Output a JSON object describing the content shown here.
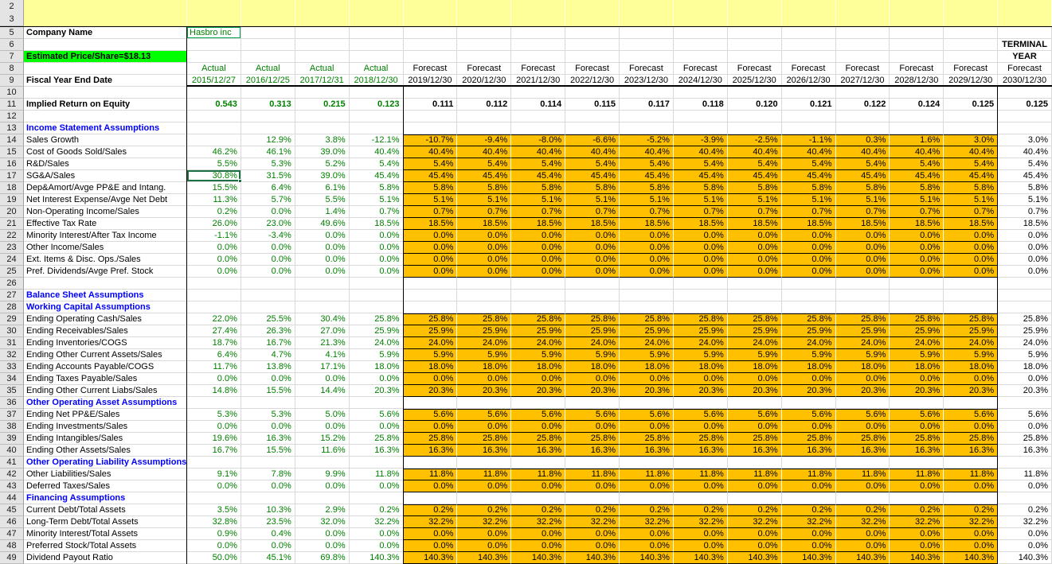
{
  "colors": {
    "band_yellow": "#FFFF99",
    "price_banner_green": "#00FF00",
    "forecast_orange": "#FFC000",
    "actual_text_green": "#008000",
    "section_blue": "#0000FF",
    "selection_green": "#1E7145"
  },
  "sheet": {
    "top_rows": [
      "2",
      "3"
    ],
    "fixed_row_numbers": {
      "company": "5",
      "blank1": "6",
      "price": "7",
      "coltype": "8",
      "dates": "9",
      "blank2": "10",
      "roe": "11"
    },
    "company": {
      "label": "Company Name",
      "value": "Hasbro inc"
    },
    "price_banner": "Estimated Price/Share=$18.13",
    "terminal_header": [
      "TERMINAL",
      "YEAR"
    ],
    "col_headers": {
      "dates_label": "Fiscal Year End Date",
      "types": [
        "Actual",
        "Actual",
        "Actual",
        "Actual",
        "Forecast",
        "Forecast",
        "Forecast",
        "Forecast",
        "Forecast",
        "Forecast",
        "Forecast",
        "Forecast",
        "Forecast",
        "Forecast",
        "Forecast",
        "Forecast"
      ],
      "dates": [
        "2015/12/27",
        "2016/12/25",
        "2017/12/31",
        "2018/12/30",
        "2019/12/30",
        "2020/12/30",
        "2021/12/30",
        "2022/12/30",
        "2023/12/30",
        "2024/12/30",
        "2025/12/30",
        "2026/12/30",
        "2027/12/30",
        "2028/12/30",
        "2029/12/30",
        "2030/12/30"
      ]
    },
    "roe": {
      "label": "Implied Return on Equity",
      "values": [
        "0.543",
        "0.313",
        "0.215",
        "0.123",
        "0.111",
        "0.112",
        "0.114",
        "0.115",
        "0.117",
        "0.118",
        "0.120",
        "0.121",
        "0.122",
        "0.124",
        "0.125",
        "0.125"
      ]
    },
    "selection": {
      "row": 17,
      "column": "first_actual",
      "value": "30.8%"
    },
    "body_rows": [
      {
        "n": 12,
        "type": "blank"
      },
      {
        "n": 13,
        "type": "section",
        "label": "Income Statement Assumptions"
      },
      {
        "n": 14,
        "type": "data",
        "label": "Sales Growth",
        "actual": [
          "",
          "12.9%",
          "3.8%",
          "-12.1%"
        ],
        "forecast": [
          "-10.7%",
          "-9.4%",
          "-8.0%",
          "-6.6%",
          "-5.2%",
          "-3.9%",
          "-2.5%",
          "-1.1%",
          "0.3%",
          "1.6%",
          "3.0%"
        ],
        "terminal": "3.0%"
      },
      {
        "n": 15,
        "type": "data",
        "label": "Cost of Goods Sold/Sales",
        "actual": [
          "46.2%",
          "46.1%",
          "39.0%",
          "40.4%"
        ],
        "forecast": [
          "40.4%",
          "40.4%",
          "40.4%",
          "40.4%",
          "40.4%",
          "40.4%",
          "40.4%",
          "40.4%",
          "40.4%",
          "40.4%",
          "40.4%"
        ],
        "terminal": "40.4%"
      },
      {
        "n": 16,
        "type": "data",
        "label": "R&D/Sales",
        "actual": [
          "5.5%",
          "5.3%",
          "5.2%",
          "5.4%"
        ],
        "forecast": [
          "5.4%",
          "5.4%",
          "5.4%",
          "5.4%",
          "5.4%",
          "5.4%",
          "5.4%",
          "5.4%",
          "5.4%",
          "5.4%",
          "5.4%"
        ],
        "terminal": "5.4%"
      },
      {
        "n": 17,
        "type": "data",
        "label": "SG&A/Sales",
        "actual": [
          "30.8%",
          "31.5%",
          "39.0%",
          "45.4%"
        ],
        "forecast": [
          "45.4%",
          "45.4%",
          "45.4%",
          "45.4%",
          "45.4%",
          "45.4%",
          "45.4%",
          "45.4%",
          "45.4%",
          "45.4%",
          "45.4%"
        ],
        "terminal": "45.4%"
      },
      {
        "n": 18,
        "type": "data",
        "label": "Dep&Amort/Avge PP&E and Intang.",
        "actual": [
          "15.5%",
          "6.4%",
          "6.1%",
          "5.8%"
        ],
        "forecast": [
          "5.8%",
          "5.8%",
          "5.8%",
          "5.8%",
          "5.8%",
          "5.8%",
          "5.8%",
          "5.8%",
          "5.8%",
          "5.8%",
          "5.8%"
        ],
        "terminal": "5.8%"
      },
      {
        "n": 19,
        "type": "data",
        "label": "Net Interest Expense/Avge Net Debt",
        "actual": [
          "11.3%",
          "5.7%",
          "5.5%",
          "5.1%"
        ],
        "forecast": [
          "5.1%",
          "5.1%",
          "5.1%",
          "5.1%",
          "5.1%",
          "5.1%",
          "5.1%",
          "5.1%",
          "5.1%",
          "5.1%",
          "5.1%"
        ],
        "terminal": "5.1%"
      },
      {
        "n": 20,
        "type": "data",
        "label": "Non-Operating Income/Sales",
        "actual": [
          "0.2%",
          "0.0%",
          "1.4%",
          "0.7%"
        ],
        "forecast": [
          "0.7%",
          "0.7%",
          "0.7%",
          "0.7%",
          "0.7%",
          "0.7%",
          "0.7%",
          "0.7%",
          "0.7%",
          "0.7%",
          "0.7%"
        ],
        "terminal": "0.7%"
      },
      {
        "n": 21,
        "type": "data",
        "label": "Effective Tax Rate",
        "actual": [
          "26.0%",
          "23.0%",
          "49.6%",
          "18.5%"
        ],
        "forecast": [
          "18.5%",
          "18.5%",
          "18.5%",
          "18.5%",
          "18.5%",
          "18.5%",
          "18.5%",
          "18.5%",
          "18.5%",
          "18.5%",
          "18.5%"
        ],
        "terminal": "18.5%"
      },
      {
        "n": 22,
        "type": "data",
        "label": "Minority Interest/After Tax Income",
        "actual": [
          "-1.1%",
          "-3.4%",
          "0.0%",
          "0.0%"
        ],
        "forecast": [
          "0.0%",
          "0.0%",
          "0.0%",
          "0.0%",
          "0.0%",
          "0.0%",
          "0.0%",
          "0.0%",
          "0.0%",
          "0.0%",
          "0.0%"
        ],
        "terminal": "0.0%"
      },
      {
        "n": 23,
        "type": "data",
        "label": "Other Income/Sales",
        "actual": [
          "0.0%",
          "0.0%",
          "0.0%",
          "0.0%"
        ],
        "forecast": [
          "0.0%",
          "0.0%",
          "0.0%",
          "0.0%",
          "0.0%",
          "0.0%",
          "0.0%",
          "0.0%",
          "0.0%",
          "0.0%",
          "0.0%"
        ],
        "terminal": "0.0%"
      },
      {
        "n": 24,
        "type": "data",
        "label": "Ext. Items & Disc. Ops./Sales",
        "actual": [
          "0.0%",
          "0.0%",
          "0.0%",
          "0.0%"
        ],
        "forecast": [
          "0.0%",
          "0.0%",
          "0.0%",
          "0.0%",
          "0.0%",
          "0.0%",
          "0.0%",
          "0.0%",
          "0.0%",
          "0.0%",
          "0.0%"
        ],
        "terminal": "0.0%"
      },
      {
        "n": 25,
        "type": "data",
        "label": "Pref. Dividends/Avge Pref. Stock",
        "actual": [
          "0.0%",
          "0.0%",
          "0.0%",
          "0.0%"
        ],
        "forecast": [
          "0.0%",
          "0.0%",
          "0.0%",
          "0.0%",
          "0.0%",
          "0.0%",
          "0.0%",
          "0.0%",
          "0.0%",
          "0.0%",
          "0.0%"
        ],
        "terminal": "0.0%"
      },
      {
        "n": 26,
        "type": "blank"
      },
      {
        "n": 27,
        "type": "section",
        "label": "Balance Sheet Assumptions"
      },
      {
        "n": 28,
        "type": "section",
        "label": "Working Capital Assumptions"
      },
      {
        "n": 29,
        "type": "data",
        "label": "Ending Operating Cash/Sales",
        "actual": [
          "22.0%",
          "25.5%",
          "30.4%",
          "25.8%"
        ],
        "forecast": [
          "25.8%",
          "25.8%",
          "25.8%",
          "25.8%",
          "25.8%",
          "25.8%",
          "25.8%",
          "25.8%",
          "25.8%",
          "25.8%",
          "25.8%"
        ],
        "terminal": "25.8%"
      },
      {
        "n": 30,
        "type": "data",
        "label": "Ending Receivables/Sales",
        "actual": [
          "27.4%",
          "26.3%",
          "27.0%",
          "25.9%"
        ],
        "forecast": [
          "25.9%",
          "25.9%",
          "25.9%",
          "25.9%",
          "25.9%",
          "25.9%",
          "25.9%",
          "25.9%",
          "25.9%",
          "25.9%",
          "25.9%"
        ],
        "terminal": "25.9%"
      },
      {
        "n": 31,
        "type": "data",
        "label": "Ending Inventories/COGS",
        "actual": [
          "18.7%",
          "16.7%",
          "21.3%",
          "24.0%"
        ],
        "forecast": [
          "24.0%",
          "24.0%",
          "24.0%",
          "24.0%",
          "24.0%",
          "24.0%",
          "24.0%",
          "24.0%",
          "24.0%",
          "24.0%",
          "24.0%"
        ],
        "terminal": "24.0%"
      },
      {
        "n": 32,
        "type": "data",
        "label": "Ending Other Current Assets/Sales",
        "actual": [
          "6.4%",
          "4.7%",
          "4.1%",
          "5.9%"
        ],
        "forecast": [
          "5.9%",
          "5.9%",
          "5.9%",
          "5.9%",
          "5.9%",
          "5.9%",
          "5.9%",
          "5.9%",
          "5.9%",
          "5.9%",
          "5.9%"
        ],
        "terminal": "5.9%"
      },
      {
        "n": 33,
        "type": "data",
        "label": "Ending Accounts Payable/COGS",
        "actual": [
          "11.7%",
          "13.8%",
          "17.1%",
          "18.0%"
        ],
        "forecast": [
          "18.0%",
          "18.0%",
          "18.0%",
          "18.0%",
          "18.0%",
          "18.0%",
          "18.0%",
          "18.0%",
          "18.0%",
          "18.0%",
          "18.0%"
        ],
        "terminal": "18.0%"
      },
      {
        "n": 34,
        "type": "data",
        "label": "Ending Taxes Payable/Sales",
        "actual": [
          "0.0%",
          "0.0%",
          "0.0%",
          "0.0%"
        ],
        "forecast": [
          "0.0%",
          "0.0%",
          "0.0%",
          "0.0%",
          "0.0%",
          "0.0%",
          "0.0%",
          "0.0%",
          "0.0%",
          "0.0%",
          "0.0%"
        ],
        "terminal": "0.0%"
      },
      {
        "n": 35,
        "type": "data",
        "label": "Ending Other Current Liabs/Sales",
        "actual": [
          "14.8%",
          "15.5%",
          "14.4%",
          "20.3%"
        ],
        "forecast": [
          "20.3%",
          "20.3%",
          "20.3%",
          "20.3%",
          "20.3%",
          "20.3%",
          "20.3%",
          "20.3%",
          "20.3%",
          "20.3%",
          "20.3%"
        ],
        "terminal": "20.3%"
      },
      {
        "n": 36,
        "type": "section",
        "label": "Other Operating Asset Assumptions"
      },
      {
        "n": 37,
        "type": "data",
        "label": "Ending Net PP&E/Sales",
        "actual": [
          "5.3%",
          "5.3%",
          "5.0%",
          "5.6%"
        ],
        "forecast": [
          "5.6%",
          "5.6%",
          "5.6%",
          "5.6%",
          "5.6%",
          "5.6%",
          "5.6%",
          "5.6%",
          "5.6%",
          "5.6%",
          "5.6%"
        ],
        "terminal": "5.6%"
      },
      {
        "n": 38,
        "type": "data",
        "label": "Ending Investments/Sales",
        "actual": [
          "0.0%",
          "0.0%",
          "0.0%",
          "0.0%"
        ],
        "forecast": [
          "0.0%",
          "0.0%",
          "0.0%",
          "0.0%",
          "0.0%",
          "0.0%",
          "0.0%",
          "0.0%",
          "0.0%",
          "0.0%",
          "0.0%"
        ],
        "terminal": "0.0%"
      },
      {
        "n": 39,
        "type": "data",
        "label": "Ending Intangibles/Sales",
        "actual": [
          "19.6%",
          "16.3%",
          "15.2%",
          "25.8%"
        ],
        "forecast": [
          "25.8%",
          "25.8%",
          "25.8%",
          "25.8%",
          "25.8%",
          "25.8%",
          "25.8%",
          "25.8%",
          "25.8%",
          "25.8%",
          "25.8%"
        ],
        "terminal": "25.8%"
      },
      {
        "n": 40,
        "type": "data",
        "label": "Ending Other Assets/Sales",
        "actual": [
          "16.7%",
          "15.5%",
          "11.6%",
          "16.3%"
        ],
        "forecast": [
          "16.3%",
          "16.3%",
          "16.3%",
          "16.3%",
          "16.3%",
          "16.3%",
          "16.3%",
          "16.3%",
          "16.3%",
          "16.3%",
          "16.3%"
        ],
        "terminal": "16.3%"
      },
      {
        "n": 41,
        "type": "section",
        "label": "Other Operating Liability Assumptions"
      },
      {
        "n": 42,
        "type": "data",
        "label": "Other Liabilities/Sales",
        "actual": [
          "9.1%",
          "7.8%",
          "9.9%",
          "11.8%"
        ],
        "forecast": [
          "11.8%",
          "11.8%",
          "11.8%",
          "11.8%",
          "11.8%",
          "11.8%",
          "11.8%",
          "11.8%",
          "11.8%",
          "11.8%",
          "11.8%"
        ],
        "terminal": "11.8%"
      },
      {
        "n": 43,
        "type": "data",
        "label": "Deferred Taxes/Sales",
        "actual": [
          "0.0%",
          "0.0%",
          "0.0%",
          "0.0%"
        ],
        "forecast": [
          "0.0%",
          "0.0%",
          "0.0%",
          "0.0%",
          "0.0%",
          "0.0%",
          "0.0%",
          "0.0%",
          "0.0%",
          "0.0%",
          "0.0%"
        ],
        "terminal": "0.0%"
      },
      {
        "n": 44,
        "type": "section",
        "label": "Financing Assumptions"
      },
      {
        "n": 45,
        "type": "data",
        "label": "Current Debt/Total Assets",
        "actual": [
          "3.5%",
          "10.3%",
          "2.9%",
          "0.2%"
        ],
        "forecast": [
          "0.2%",
          "0.2%",
          "0.2%",
          "0.2%",
          "0.2%",
          "0.2%",
          "0.2%",
          "0.2%",
          "0.2%",
          "0.2%",
          "0.2%"
        ],
        "terminal": "0.2%"
      },
      {
        "n": 46,
        "type": "data",
        "label": "Long-Term Debt/Total Assets",
        "actual": [
          "32.8%",
          "23.5%",
          "32.0%",
          "32.2%"
        ],
        "forecast": [
          "32.2%",
          "32.2%",
          "32.2%",
          "32.2%",
          "32.2%",
          "32.2%",
          "32.2%",
          "32.2%",
          "32.2%",
          "32.2%",
          "32.2%"
        ],
        "terminal": "32.2%"
      },
      {
        "n": 47,
        "type": "data",
        "label": "Minority Interest/Total Assets",
        "actual": [
          "0.9%",
          "0.4%",
          "0.0%",
          "0.0%"
        ],
        "forecast": [
          "0.0%",
          "0.0%",
          "0.0%",
          "0.0%",
          "0.0%",
          "0.0%",
          "0.0%",
          "0.0%",
          "0.0%",
          "0.0%",
          "0.0%"
        ],
        "terminal": "0.0%"
      },
      {
        "n": 48,
        "type": "data",
        "label": "Preferred Stock/Total Assets",
        "actual": [
          "0.0%",
          "0.0%",
          "0.0%",
          "0.0%"
        ],
        "forecast": [
          "0.0%",
          "0.0%",
          "0.0%",
          "0.0%",
          "0.0%",
          "0.0%",
          "0.0%",
          "0.0%",
          "0.0%",
          "0.0%",
          "0.0%"
        ],
        "terminal": "0.0%"
      },
      {
        "n": 49,
        "type": "data",
        "label": "Dividend Payout Ratio",
        "actual": [
          "50.0%",
          "45.1%",
          "69.8%",
          "140.3%"
        ],
        "forecast": [
          "140.3%",
          "140.3%",
          "140.3%",
          "140.3%",
          "140.3%",
          "140.3%",
          "140.3%",
          "140.3%",
          "140.3%",
          "140.3%",
          "140.3%"
        ],
        "terminal": "140.3%"
      }
    ]
  }
}
